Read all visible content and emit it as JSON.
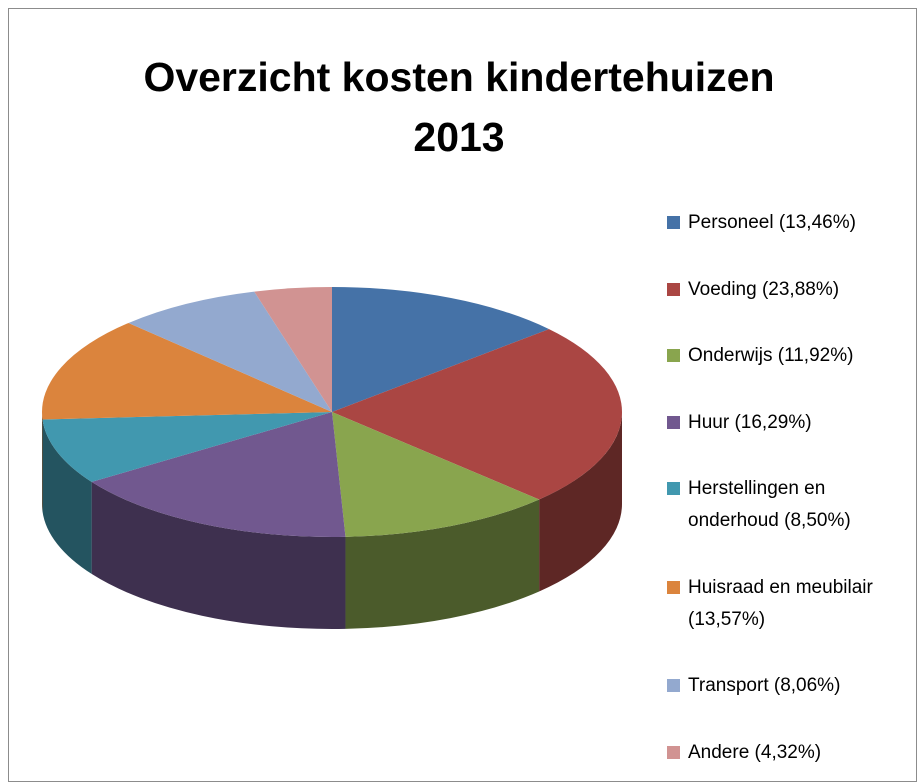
{
  "chart_data": {
    "type": "pie3d",
    "title": "Overzicht kosten kindertehuizen 2013",
    "categories": [
      "Personeel (13,46%)",
      "Voeding (23,88%)",
      "Onderwijs (11,92%)",
      "Huur (16,29%)",
      "Herstellingen en onderhoud (8,50%)",
      "Huisraad en meubilair (13,57%)",
      "Transport (8,06%)",
      "Andere (4,32%)"
    ],
    "values": [
      13.46,
      23.88,
      11.92,
      16.29,
      8.5,
      13.57,
      8.06,
      4.32
    ],
    "colors": [
      "#4572a7",
      "#aa4643",
      "#89a54e",
      "#71588f",
      "#4198af",
      "#db843d",
      "#93a9cf",
      "#d19392"
    ],
    "legend": "right"
  }
}
